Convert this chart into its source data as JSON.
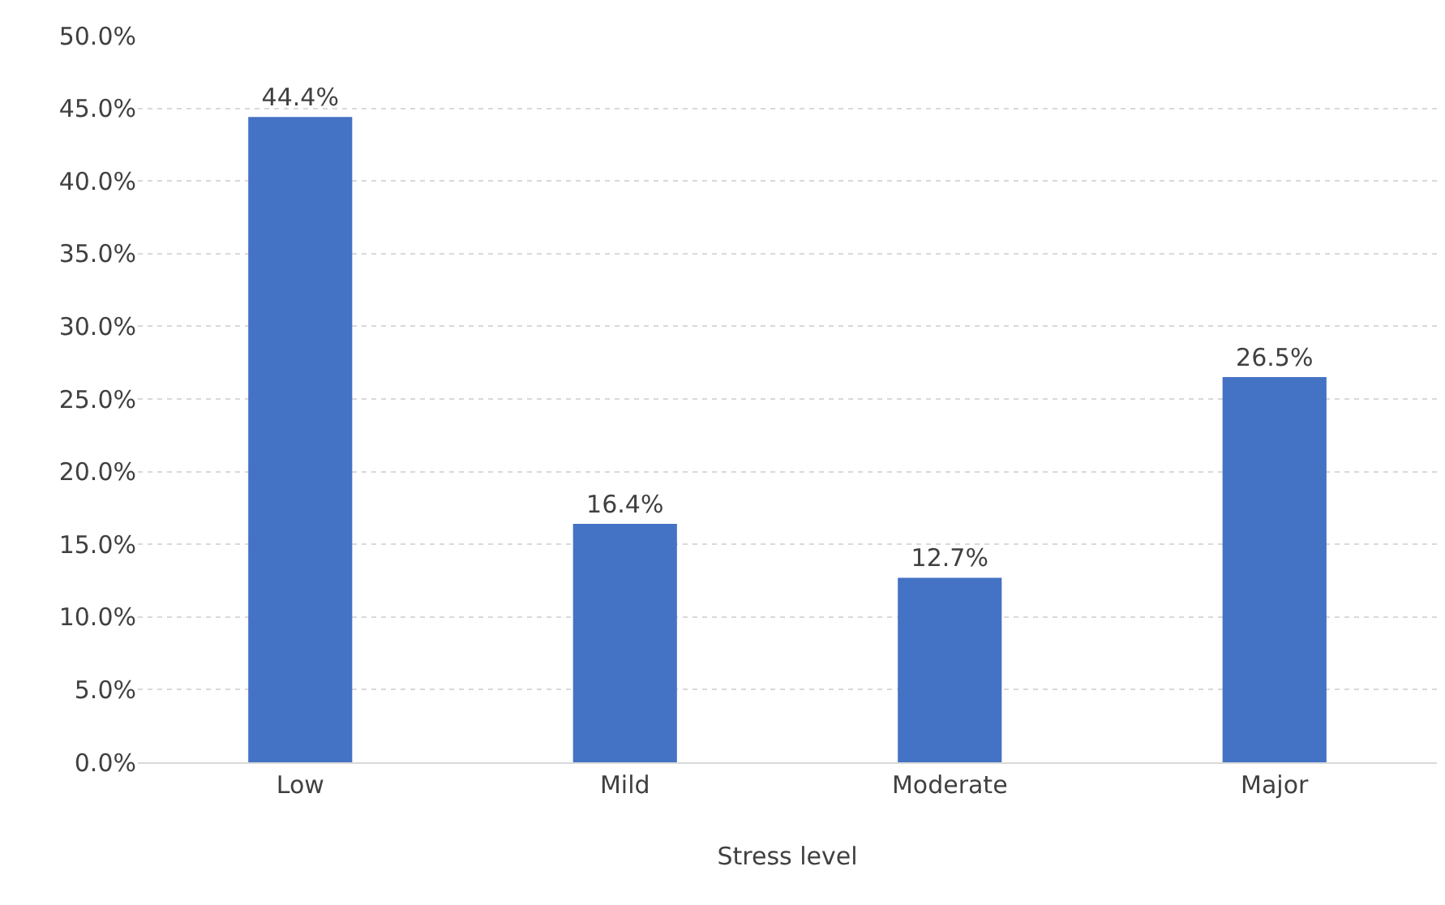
{
  "chart_data": {
    "type": "bar",
    "xlabel": "Stress level",
    "categories": [
      "Low",
      "Mild",
      "Moderate",
      "Major"
    ],
    "values": [
      44.4,
      16.4,
      12.7,
      26.5
    ],
    "value_labels": [
      "44.4%",
      "16.4%",
      "12.7%",
      "26.5%"
    ],
    "color": "#4472c4",
    "ylim": [
      0,
      50
    ],
    "yticks": [
      {
        "value": 0,
        "label": "0.0%"
      },
      {
        "value": 5,
        "label": "5.0%"
      },
      {
        "value": 10,
        "label": "10.0%"
      },
      {
        "value": 15,
        "label": "15.0%"
      },
      {
        "value": 20,
        "label": "20.0%"
      },
      {
        "value": 25,
        "label": "25.0%"
      },
      {
        "value": 30,
        "label": "30.0%"
      },
      {
        "value": 35,
        "label": "35.0%"
      },
      {
        "value": 40,
        "label": "40.0%"
      },
      {
        "value": 45,
        "label": "45.0%"
      },
      {
        "value": 50,
        "label": "50.0%"
      }
    ],
    "grid": "y"
  }
}
